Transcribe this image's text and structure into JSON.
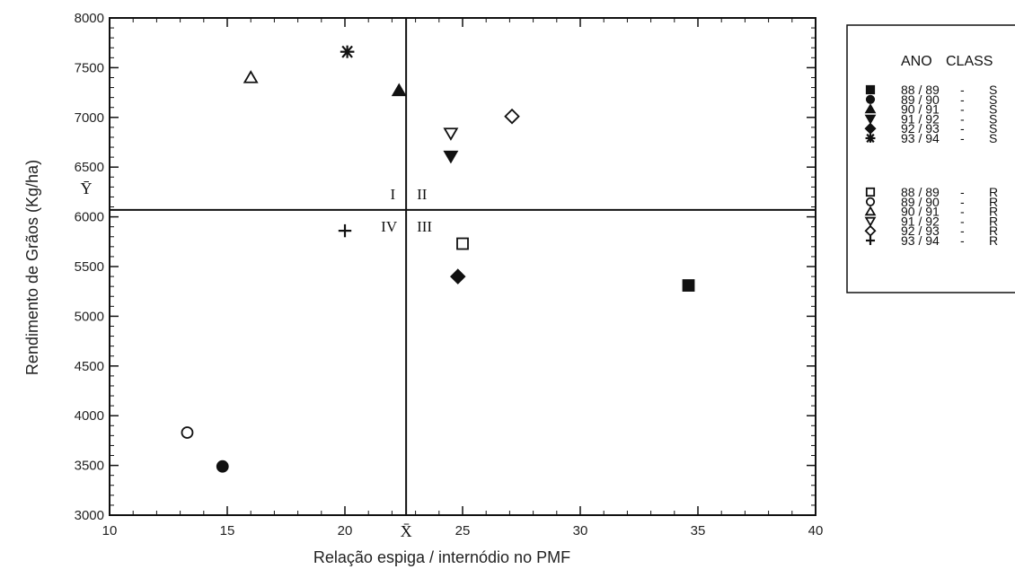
{
  "chart_data": {
    "type": "scatter",
    "xlabel": "Relação espiga / internódio no PMF",
    "ylabel": "Rendimento de Grãos (Kg/ha)",
    "xlim": [
      10,
      40
    ],
    "ylim": [
      3000,
      8000
    ],
    "x_ticks": [
      10,
      15,
      20,
      25,
      30,
      35,
      40
    ],
    "y_ticks": [
      3000,
      3500,
      4000,
      4500,
      5000,
      5500,
      6000,
      6500,
      7000,
      7500,
      8000
    ],
    "grid": false,
    "reference_lines": {
      "x_mean": 22.6,
      "x_mean_label": "X̄",
      "y_mean": 6070,
      "y_mean_label": "Ȳ"
    },
    "quadrant_labels": [
      "I",
      "II",
      "III",
      "IV"
    ],
    "legend": {
      "placement": "right",
      "header_ano": "ANO",
      "header_class": "CLASS"
    },
    "series": [
      {
        "name": "88 / 89",
        "class": "S",
        "symbol": "square-filled",
        "points": [
          {
            "x": 34.6,
            "y": 5310
          }
        ]
      },
      {
        "name": "89 / 90",
        "class": "S",
        "symbol": "circle-filled",
        "points": [
          {
            "x": 14.8,
            "y": 3490
          }
        ]
      },
      {
        "name": "90 / 91",
        "class": "S",
        "symbol": "triangle-up-filled",
        "points": [
          {
            "x": 22.3,
            "y": 7270
          }
        ]
      },
      {
        "name": "91 / 92",
        "class": "S",
        "symbol": "triangle-down-filled",
        "points": [
          {
            "x": 24.5,
            "y": 6610
          }
        ]
      },
      {
        "name": "92 / 93",
        "class": "S",
        "symbol": "diamond-filled",
        "points": [
          {
            "x": 24.8,
            "y": 5400
          }
        ]
      },
      {
        "name": "93 / 94",
        "class": "S",
        "symbol": "asterisk",
        "points": [
          {
            "x": 20.1,
            "y": 7660
          }
        ]
      },
      {
        "name": "88 / 89",
        "class": "R",
        "symbol": "square-open",
        "points": [
          {
            "x": 25.0,
            "y": 5730
          }
        ]
      },
      {
        "name": "89 / 90",
        "class": "R",
        "symbol": "circle-open",
        "points": [
          {
            "x": 13.3,
            "y": 3830
          }
        ]
      },
      {
        "name": "90 / 91",
        "class": "R",
        "symbol": "triangle-up-open",
        "points": [
          {
            "x": 16.0,
            "y": 7400
          }
        ]
      },
      {
        "name": "91 / 92",
        "class": "R",
        "symbol": "triangle-down-open",
        "points": [
          {
            "x": 24.5,
            "y": 6840
          }
        ]
      },
      {
        "name": "92 / 93",
        "class": "R",
        "symbol": "diamond-open",
        "points": [
          {
            "x": 27.1,
            "y": 7010
          }
        ]
      },
      {
        "name": "93 / 94",
        "class": "R",
        "symbol": "plus",
        "points": [
          {
            "x": 20.0,
            "y": 5860
          }
        ]
      }
    ]
  }
}
